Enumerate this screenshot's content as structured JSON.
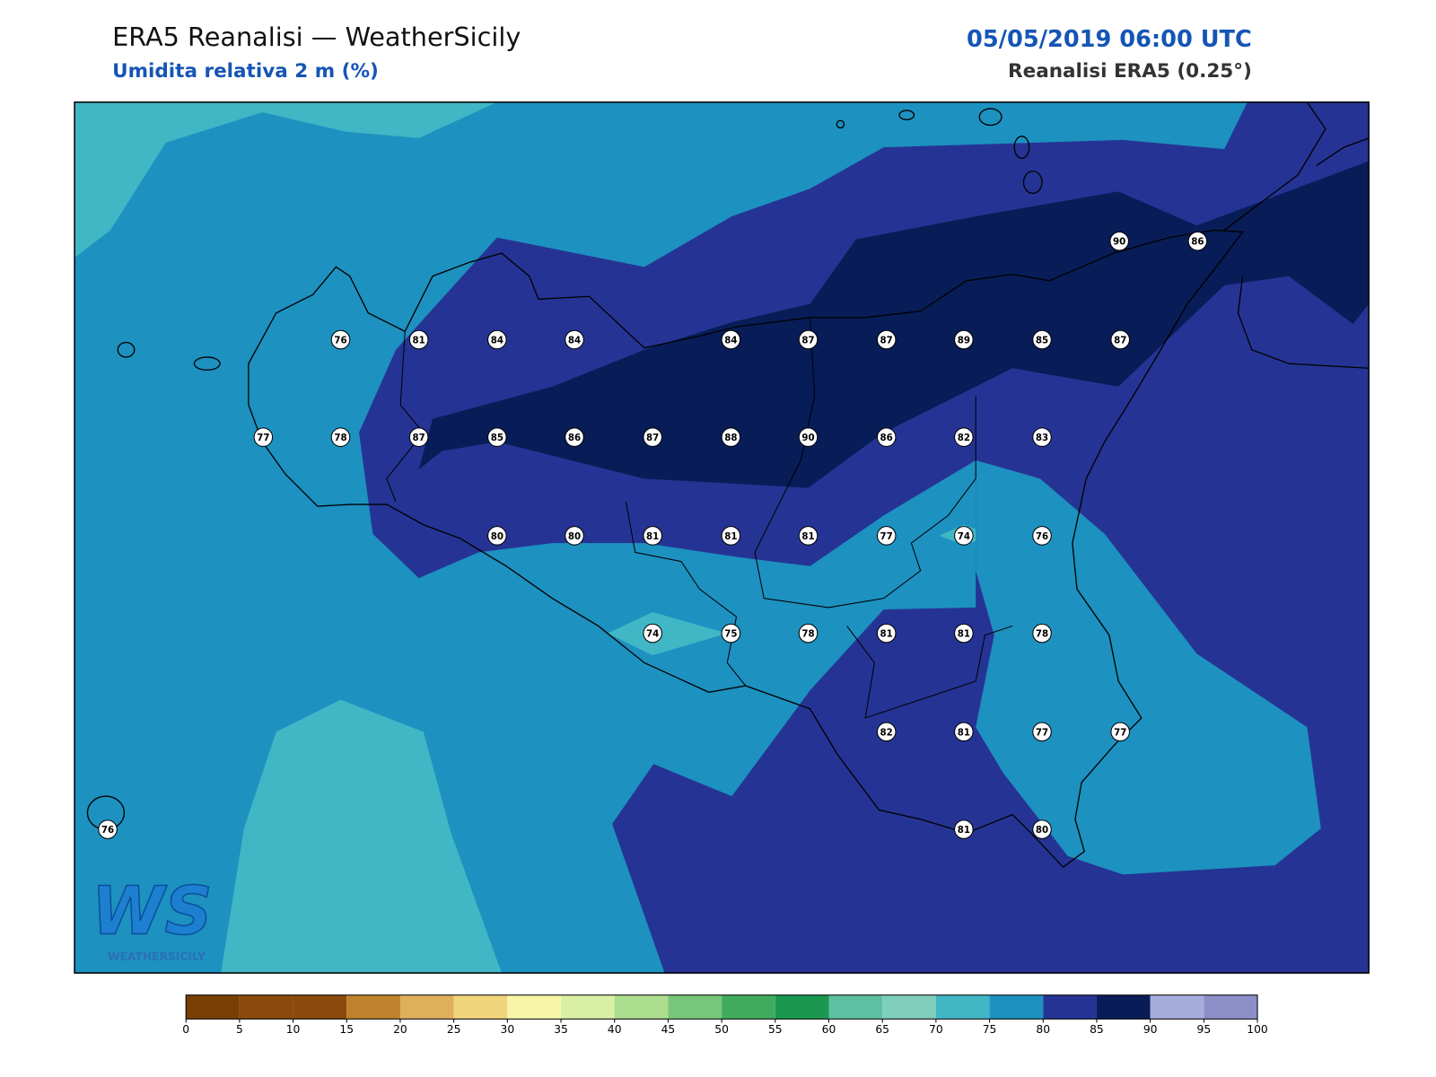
{
  "header": {
    "title": "ERA5 Reanalisi — WeatherSicily",
    "subtitle": "Umidita relativa 2 m (%)",
    "datetime": "05/05/2019 06:00 UTC",
    "source": "Reanalisi ERA5 (0.25°)"
  },
  "stations": {
    "values": [
      90,
      86,
      76,
      81,
      84,
      84,
      84,
      87,
      87,
      89,
      85,
      87,
      77,
      78,
      87,
      85,
      86,
      87,
      88,
      90,
      86,
      82,
      83,
      80,
      80,
      81,
      81,
      81,
      77,
      74,
      76,
      74,
      75,
      78,
      81,
      81,
      78,
      82,
      81,
      77,
      77,
      76,
      81,
      80
    ]
  },
  "colorbar": {
    "ticks": [
      0,
      5,
      10,
      15,
      20,
      25,
      30,
      35,
      40,
      45,
      50,
      55,
      60,
      65,
      70,
      75,
      80,
      85,
      90,
      95,
      100
    ],
    "colors": [
      "#783f04",
      "#8b4a0b",
      "#8b4a0b",
      "#bf812d",
      "#dfb05c",
      "#f0d47c",
      "#f6f5a8",
      "#d9efa4",
      "#addd8e",
      "#78c679",
      "#41ab5d",
      "#1b9850",
      "#5ec0a0",
      "#7fcdbb",
      "#41b6c4",
      "#1d91c0",
      "#253494",
      "#081d58",
      "#a6acdc",
      "#8c8fc8"
    ]
  },
  "logo": {
    "mark": "WS",
    "text": "WEATHERSICILY"
  }
}
